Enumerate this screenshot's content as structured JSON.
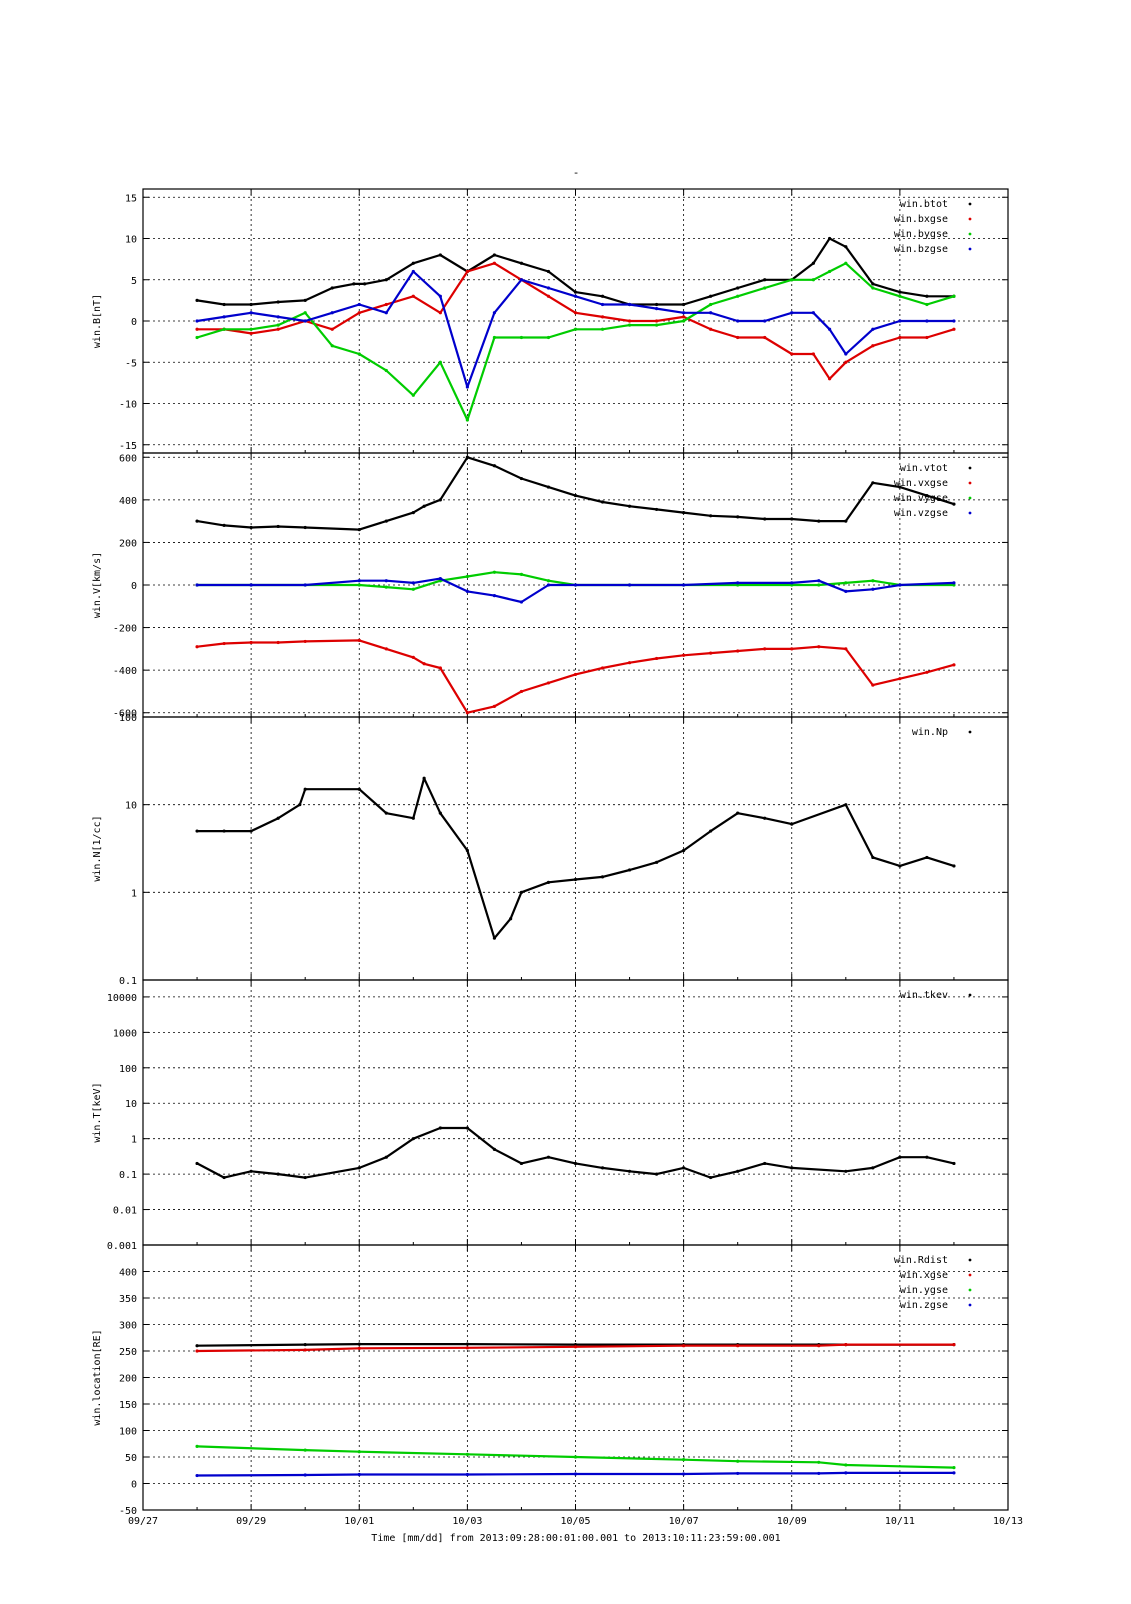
{
  "page_title": "-",
  "x_axis": {
    "label": "Time [mm/dd]  from 2013:09:28:00:01:00.001  to  2013:10:11:23:59:00.001",
    "tick_labels": [
      "09/27",
      "09/29",
      "10/01",
      "10/03",
      "10/05",
      "10/07",
      "10/09",
      "10/11",
      "10/13"
    ],
    "range_days_from_0927": [
      0,
      16
    ]
  },
  "colors": {
    "black": "#000000",
    "red": "#dd0000",
    "green": "#00cc00",
    "blue": "#0000cc",
    "grid": "#000000"
  },
  "chart_data": [
    {
      "type": "scatter",
      "ylabel": "win.B[nT]",
      "ylim": [
        -16,
        16
      ],
      "log": false,
      "y_ticks": [
        15,
        10,
        5,
        0,
        -5,
        -10,
        -15
      ],
      "y_tick_labels": [
        "15",
        "10",
        "5",
        "0",
        "-5",
        "-10",
        "-15"
      ],
      "legend_placement": "top-right",
      "series": [
        {
          "name": "win.btot",
          "color": "black",
          "x": [
            1.0,
            1.5,
            2.0,
            2.5,
            3.0,
            3.5,
            3.9,
            4.1,
            4.5,
            5.0,
            5.5,
            6.0,
            6.5,
            7.0,
            7.5,
            8.0,
            8.5,
            9.0,
            9.5,
            10.0,
            10.5,
            11.0,
            11.5,
            12.0,
            12.4,
            12.7,
            13.0,
            13.5,
            14.0,
            14.5,
            15.0
          ],
          "y": [
            2.5,
            2,
            2,
            2.3,
            2.5,
            4,
            4.5,
            4.5,
            5,
            7,
            8,
            6,
            8,
            7,
            6,
            3.5,
            3,
            2,
            2,
            2,
            3,
            4,
            5,
            5,
            7,
            10,
            9,
            4.5,
            3.5,
            3,
            3
          ]
        },
        {
          "name": "win.bxgse",
          "color": "red",
          "x": [
            1.0,
            1.5,
            2.0,
            2.5,
            3.0,
            3.5,
            4.0,
            4.5,
            5.0,
            5.5,
            6.0,
            6.5,
            7.0,
            7.5,
            8.0,
            8.5,
            9.0,
            9.5,
            10.0,
            10.5,
            11.0,
            11.5,
            12.0,
            12.4,
            12.7,
            13.0,
            13.5,
            14.0,
            14.5,
            15.0
          ],
          "y": [
            -1,
            -1,
            -1.5,
            -1,
            0,
            -1,
            1,
            2,
            3,
            1,
            6,
            7,
            5,
            3,
            1,
            0.5,
            0,
            0,
            0.5,
            -1,
            -2,
            -2,
            -4,
            -4,
            -7,
            -5,
            -3,
            -2,
            -2,
            -1
          ]
        },
        {
          "name": "win.bygse",
          "color": "green",
          "x": [
            1.0,
            1.5,
            2.0,
            2.5,
            3.0,
            3.5,
            4.0,
            4.5,
            5.0,
            5.5,
            6.0,
            6.5,
            7.0,
            7.5,
            8.0,
            8.5,
            9.0,
            9.5,
            10.0,
            10.5,
            11.0,
            11.5,
            12.0,
            12.4,
            12.7,
            13.0,
            13.5,
            14.0,
            14.5,
            15.0
          ],
          "y": [
            -2,
            -1,
            -1,
            -0.5,
            1,
            -3,
            -4,
            -6,
            -9,
            -5,
            -12,
            -2,
            -2,
            -2,
            -1,
            -1,
            -0.5,
            -0.5,
            0,
            2,
            3,
            4,
            5,
            5,
            6,
            7,
            4,
            3,
            2,
            3
          ]
        },
        {
          "name": "win.bzgse",
          "color": "blue",
          "x": [
            1.0,
            1.5,
            2.0,
            2.5,
            3.0,
            3.5,
            4.0,
            4.5,
            5.0,
            5.5,
            6.0,
            6.5,
            7.0,
            7.5,
            8.0,
            8.5,
            9.0,
            9.5,
            10.0,
            10.5,
            11.0,
            11.5,
            12.0,
            12.4,
            12.7,
            13.0,
            13.5,
            14.0,
            14.5,
            15.0
          ],
          "y": [
            0,
            0.5,
            1,
            0.5,
            0,
            1,
            2,
            1,
            6,
            3,
            -8,
            1,
            5,
            4,
            3,
            2,
            2,
            1.5,
            1,
            1,
            0,
            0,
            1,
            1,
            -1,
            -4,
            -1,
            0,
            0,
            0
          ]
        }
      ]
    },
    {
      "type": "scatter",
      "ylabel": "win.V[km/s]",
      "ylim": [
        -620,
        620
      ],
      "log": false,
      "y_ticks": [
        600,
        400,
        200,
        0,
        -200,
        -400,
        -600
      ],
      "y_tick_labels": [
        "600",
        "400",
        "200",
        "0",
        "-200",
        "-400",
        "-600"
      ],
      "legend_placement": "top-right",
      "series": [
        {
          "name": "win.vtot",
          "color": "black",
          "x": [
            1.0,
            1.5,
            2.0,
            2.5,
            3.0,
            4.0,
            4.5,
            5.0,
            5.2,
            5.5,
            6.0,
            6.5,
            7.0,
            7.5,
            8.0,
            8.5,
            9.0,
            9.5,
            10.0,
            10.5,
            11.0,
            11.5,
            12.0,
            12.5,
            13.0,
            13.5,
            14.0,
            14.5,
            15.0
          ],
          "y": [
            300,
            280,
            270,
            275,
            270,
            260,
            300,
            340,
            370,
            400,
            600,
            560,
            500,
            460,
            420,
            390,
            370,
            355,
            340,
            325,
            320,
            310,
            310,
            300,
            300,
            480,
            460,
            420,
            380
          ]
        },
        {
          "name": "win.vxgse",
          "color": "red",
          "x": [
            1.0,
            1.5,
            2.0,
            2.5,
            3.0,
            4.0,
            4.5,
            5.0,
            5.2,
            5.5,
            6.0,
            6.5,
            7.0,
            7.5,
            8.0,
            8.5,
            9.0,
            9.5,
            10.0,
            10.5,
            11.0,
            11.5,
            12.0,
            12.5,
            13.0,
            13.5,
            14.0,
            14.5,
            15.0
          ],
          "y": [
            -290,
            -275,
            -270,
            -270,
            -265,
            -260,
            -300,
            -340,
            -370,
            -390,
            -600,
            -570,
            -500,
            -460,
            -420,
            -390,
            -365,
            -345,
            -330,
            -320,
            -310,
            -300,
            -300,
            -290,
            -300,
            -470,
            -440,
            -410,
            -375
          ]
        },
        {
          "name": "win.vygse",
          "color": "green",
          "x": [
            1.0,
            2.0,
            3.0,
            4.0,
            4.5,
            5.0,
            5.5,
            6.0,
            6.5,
            7.0,
            7.5,
            8.0,
            9.0,
            10.0,
            11.0,
            12.0,
            12.5,
            13.0,
            13.5,
            14.0,
            15.0
          ],
          "y": [
            0,
            0,
            0,
            0,
            -10,
            -20,
            20,
            40,
            60,
            50,
            20,
            0,
            0,
            0,
            0,
            0,
            0,
            10,
            20,
            0,
            0
          ]
        },
        {
          "name": "win.vzgse",
          "color": "blue",
          "x": [
            1.0,
            2.0,
            3.0,
            4.0,
            4.5,
            5.0,
            5.5,
            6.0,
            6.5,
            7.0,
            7.5,
            8.0,
            9.0,
            10.0,
            11.0,
            12.0,
            12.5,
            13.0,
            13.5,
            14.0,
            15.0
          ],
          "y": [
            0,
            0,
            0,
            20,
            20,
            10,
            30,
            -30,
            -50,
            -80,
            0,
            0,
            0,
            0,
            10,
            10,
            20,
            -30,
            -20,
            0,
            10
          ]
        }
      ]
    },
    {
      "type": "scatter",
      "ylabel": "win.N[1/cc]",
      "ylim": [
        0.1,
        100
      ],
      "log": true,
      "y_ticks": [
        100,
        10,
        1,
        0.1
      ],
      "y_tick_labels": [
        "100",
        "10",
        "1",
        "0.1"
      ],
      "legend_placement": "top-right",
      "series": [
        {
          "name": "win.Np",
          "color": "black",
          "x": [
            1.0,
            1.5,
            2.0,
            2.5,
            2.9,
            3.0,
            4.0,
            4.5,
            5.0,
            5.2,
            5.5,
            6.0,
            6.5,
            6.8,
            7.0,
            7.5,
            8.0,
            8.5,
            9.0,
            9.5,
            10.0,
            10.5,
            11.0,
            11.5,
            12.0,
            13.0,
            13.5,
            14.0,
            14.5,
            15.0
          ],
          "y": [
            5,
            5,
            5,
            7,
            10,
            15,
            15,
            8,
            7,
            20,
            8,
            3,
            0.3,
            0.5,
            1,
            1.3,
            1.4,
            1.5,
            1.8,
            2.2,
            3,
            5,
            8,
            7,
            6,
            10,
            2.5,
            2,
            2.5,
            2
          ]
        }
      ]
    },
    {
      "type": "scatter",
      "ylabel": "win.T[keV]",
      "ylim": [
        0.001,
        30000
      ],
      "log": true,
      "y_ticks": [
        10000,
        1000,
        100,
        10,
        1,
        0.1,
        0.01,
        0.001
      ],
      "y_tick_labels": [
        "10000",
        "1000",
        "100",
        "10",
        "1",
        "0.1",
        "0.01",
        "0.001"
      ],
      "legend_placement": "top-right",
      "series": [
        {
          "name": "win.tkev",
          "color": "black",
          "x": [
            1.0,
            1.5,
            2.0,
            2.5,
            3.0,
            4.0,
            4.5,
            5.0,
            5.5,
            6.0,
            6.5,
            7.0,
            7.5,
            8.0,
            8.5,
            9.0,
            9.5,
            10.0,
            10.5,
            11.0,
            11.5,
            12.0,
            13.0,
            13.5,
            14.0,
            14.5,
            15.0
          ],
          "y": [
            0.2,
            0.08,
            0.12,
            0.1,
            0.08,
            0.15,
            0.3,
            1,
            2,
            2,
            0.5,
            0.2,
            0.3,
            0.2,
            0.15,
            0.12,
            0.1,
            0.15,
            0.08,
            0.12,
            0.2,
            0.15,
            0.12,
            0.15,
            0.3,
            0.3,
            0.2
          ]
        }
      ]
    },
    {
      "type": "scatter",
      "ylabel": "win.location[RE]",
      "ylim": [
        -50,
        450
      ],
      "log": false,
      "y_ticks": [
        400,
        350,
        300,
        250,
        200,
        150,
        100,
        50,
        0,
        -50
      ],
      "y_tick_labels": [
        "400",
        "350",
        "300",
        "250",
        "200",
        "150",
        "100",
        "50",
        "0",
        "-50"
      ],
      "legend_placement": "top-right",
      "series": [
        {
          "name": "win.Rdist",
          "color": "black",
          "x": [
            1.0,
            3.0,
            4.0,
            6.0,
            8.0,
            10.0,
            11.0,
            12.5,
            13.0,
            15.0
          ],
          "y": [
            260,
            262,
            263,
            263,
            262,
            262,
            262,
            262,
            262,
            262
          ]
        },
        {
          "name": "win.xgse",
          "color": "red",
          "x": [
            1.0,
            3.0,
            4.0,
            6.0,
            8.0,
            10.0,
            11.0,
            12.5,
            13.0,
            15.0
          ],
          "y": [
            250,
            252,
            255,
            256,
            258,
            260,
            260,
            260,
            262,
            262
          ]
        },
        {
          "name": "win.ygse",
          "color": "green",
          "x": [
            1.0,
            3.0,
            4.0,
            6.0,
            8.0,
            10.0,
            11.0,
            12.5,
            13.0,
            15.0
          ],
          "y": [
            70,
            63,
            60,
            55,
            50,
            45,
            42,
            40,
            35,
            30
          ]
        },
        {
          "name": "win.zgse",
          "color": "blue",
          "x": [
            1.0,
            3.0,
            4.0,
            6.0,
            8.0,
            10.0,
            11.0,
            12.5,
            13.0,
            15.0
          ],
          "y": [
            15,
            16,
            17,
            17,
            18,
            18,
            19,
            19,
            20,
            20
          ]
        }
      ]
    }
  ]
}
